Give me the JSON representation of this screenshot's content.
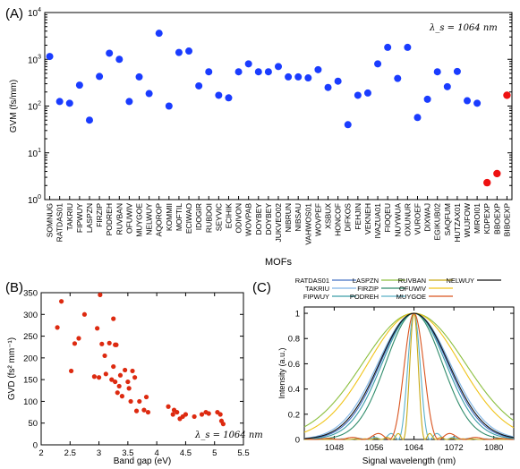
{
  "panel_labels": {
    "a": "(A)",
    "b": "(B)",
    "c": "(C)"
  },
  "chart_data": [
    {
      "type": "scatter",
      "panel": "(A)",
      "xlabel": "MOFs",
      "ylabel": "GVM (fs/mm)",
      "yscale": "log",
      "ylim": [
        1,
        10000
      ],
      "yticks": [
        "10^0",
        "10^1",
        "10^2",
        "10^3",
        "10^4"
      ],
      "annotation": "λ_s = 1064 nm",
      "grid": false,
      "colors": {
        "blue": "#1a3cff",
        "red": "#ee1111"
      },
      "categories": [
        "SOMNUG",
        "RATDAS01",
        "TAKRIU",
        "FIPWUY",
        "LASPZN",
        "FIRZIP",
        "PODREH",
        "RUVBAN",
        "OFUWIV",
        "MUYGOE",
        "NELWUY",
        "AQOROP",
        "KOMMII",
        "MOFTIL",
        "ECIWAO",
        "IDOGIR",
        "RUBDOI",
        "SEYVIC",
        "ECIHIK",
        "ODIVON",
        "WOVPAB",
        "DOYBEY",
        "DOYBEY",
        "JUKVEO02",
        "NIBRUN",
        "NIBSAU",
        "VAHWOS01",
        "WOVPEF",
        "XSBUX",
        "HONCOF",
        "DIFKOS",
        "FEHJIN",
        "VEKNEH",
        "IVAZUA01",
        "FIOQEU",
        "NUYWUA",
        "OXUNUR",
        "VUROEF",
        "DIXWAJ",
        "EGIKUB02",
        "SAQFUM",
        "HUTZAX01",
        "WUJFOW",
        "MIROI01",
        "KDPEXP",
        "BBOEXP",
        "BIBOEXP"
      ],
      "values": [
        1150,
        125,
        115,
        280,
        50,
        430,
        1350,
        1000,
        125,
        420,
        185,
        3600,
        100,
        1400,
        1500,
        270,
        540,
        170,
        150,
        540,
        800,
        540,
        540,
        700,
        420,
        420,
        400,
        600,
        250,
        340,
        40,
        170,
        190,
        800,
        1800,
        390,
        1800,
        57,
        140,
        540,
        260,
        550,
        130,
        115,
        2.3,
        3.6,
        170
      ],
      "red_categories": [
        "KDPEXP",
        "BBOEXP",
        "BIBOEXP"
      ]
    },
    {
      "type": "scatter",
      "panel": "(B)",
      "xlabel": "Band gap (eV)",
      "ylabel": "GVD (fs² mm⁻¹)",
      "xlim": [
        2,
        5.5
      ],
      "ylim": [
        0,
        350
      ],
      "xticks": [
        "2",
        "2.5",
        "3",
        "3.5",
        "4",
        "4.5",
        "5",
        "5.5"
      ],
      "yticks": [
        "0",
        "50",
        "100",
        "150",
        "200",
        "250",
        "300",
        "350"
      ],
      "annotation": "λ_s = 1064 nm",
      "color": "#dd2a10",
      "x": [
        2.28,
        2.35,
        2.52,
        2.58,
        2.65,
        2.75,
        2.92,
        2.97,
        3.0,
        3.02,
        3.05,
        3.1,
        3.12,
        3.18,
        3.22,
        3.25,
        3.28,
        3.25,
        3.28,
        3.3,
        3.32,
        3.35,
        3.37,
        3.4,
        3.45,
        3.5,
        3.52,
        3.55,
        3.58,
        3.62,
        3.65,
        3.7,
        3.78,
        3.82,
        3.85,
        4.2,
        4.28,
        4.3,
        4.35,
        4.4,
        4.45,
        4.5,
        4.65,
        4.78,
        4.85,
        4.9,
        5.05,
        5.1,
        5.12,
        5.15
      ],
      "y": [
        270,
        330,
        170,
        233,
        245,
        300,
        157,
        268,
        155,
        345,
        232,
        205,
        163,
        234,
        150,
        180,
        230,
        290,
        145,
        230,
        120,
        135,
        160,
        112,
        172,
        145,
        130,
        100,
        170,
        155,
        78,
        100,
        80,
        110,
        75,
        88,
        70,
        80,
        75,
        60,
        65,
        70,
        65,
        70,
        75,
        72,
        75,
        70,
        55,
        48
      ]
    },
    {
      "type": "line",
      "panel": "(C)",
      "xlabel": "Signal wavelength (nm)",
      "ylabel": "Intensity (a.u.)",
      "xlim": [
        1042,
        1084
      ],
      "ylim": [
        0,
        1.05
      ],
      "xticks": [
        "1048",
        "1056",
        "1064",
        "1072",
        "1080"
      ],
      "yticks": [
        "0",
        "0.2",
        "0.4",
        "0.6",
        "0.8",
        "1"
      ],
      "center": 1064,
      "series": [
        {
          "name": "RATDAS01",
          "color": "#4472c4",
          "width": 9.5,
          "kind": "gauss"
        },
        {
          "name": "TAKRIU",
          "color": "#7fb5e6",
          "width": 10.2,
          "kind": "gauss"
        },
        {
          "name": "FIPWUY",
          "color": "#3a9ea8",
          "width": 9.0,
          "kind": "gauss"
        },
        {
          "name": "LASPZN",
          "color": "#8cbf3f",
          "width": 14.5,
          "kind": "gauss"
        },
        {
          "name": "FIRZIP",
          "color": "#2e8b6a",
          "width": 8.0,
          "kind": "gauss"
        },
        {
          "name": "PODREH",
          "color": "#5ab0c8",
          "width": 3.2,
          "kind": "sinc"
        },
        {
          "name": "RUVBAN",
          "color": "#c8a915",
          "width": 2.2,
          "kind": "sinc"
        },
        {
          "name": "OFUWIV",
          "color": "#f0c419",
          "width": 13.0,
          "kind": "gauss"
        },
        {
          "name": "MUYGOE",
          "color": "#d9531e",
          "width": 5.0,
          "kind": "sinc"
        },
        {
          "name": "NELWUY",
          "color": "#111111",
          "width": 9.8,
          "kind": "gauss"
        }
      ]
    }
  ]
}
